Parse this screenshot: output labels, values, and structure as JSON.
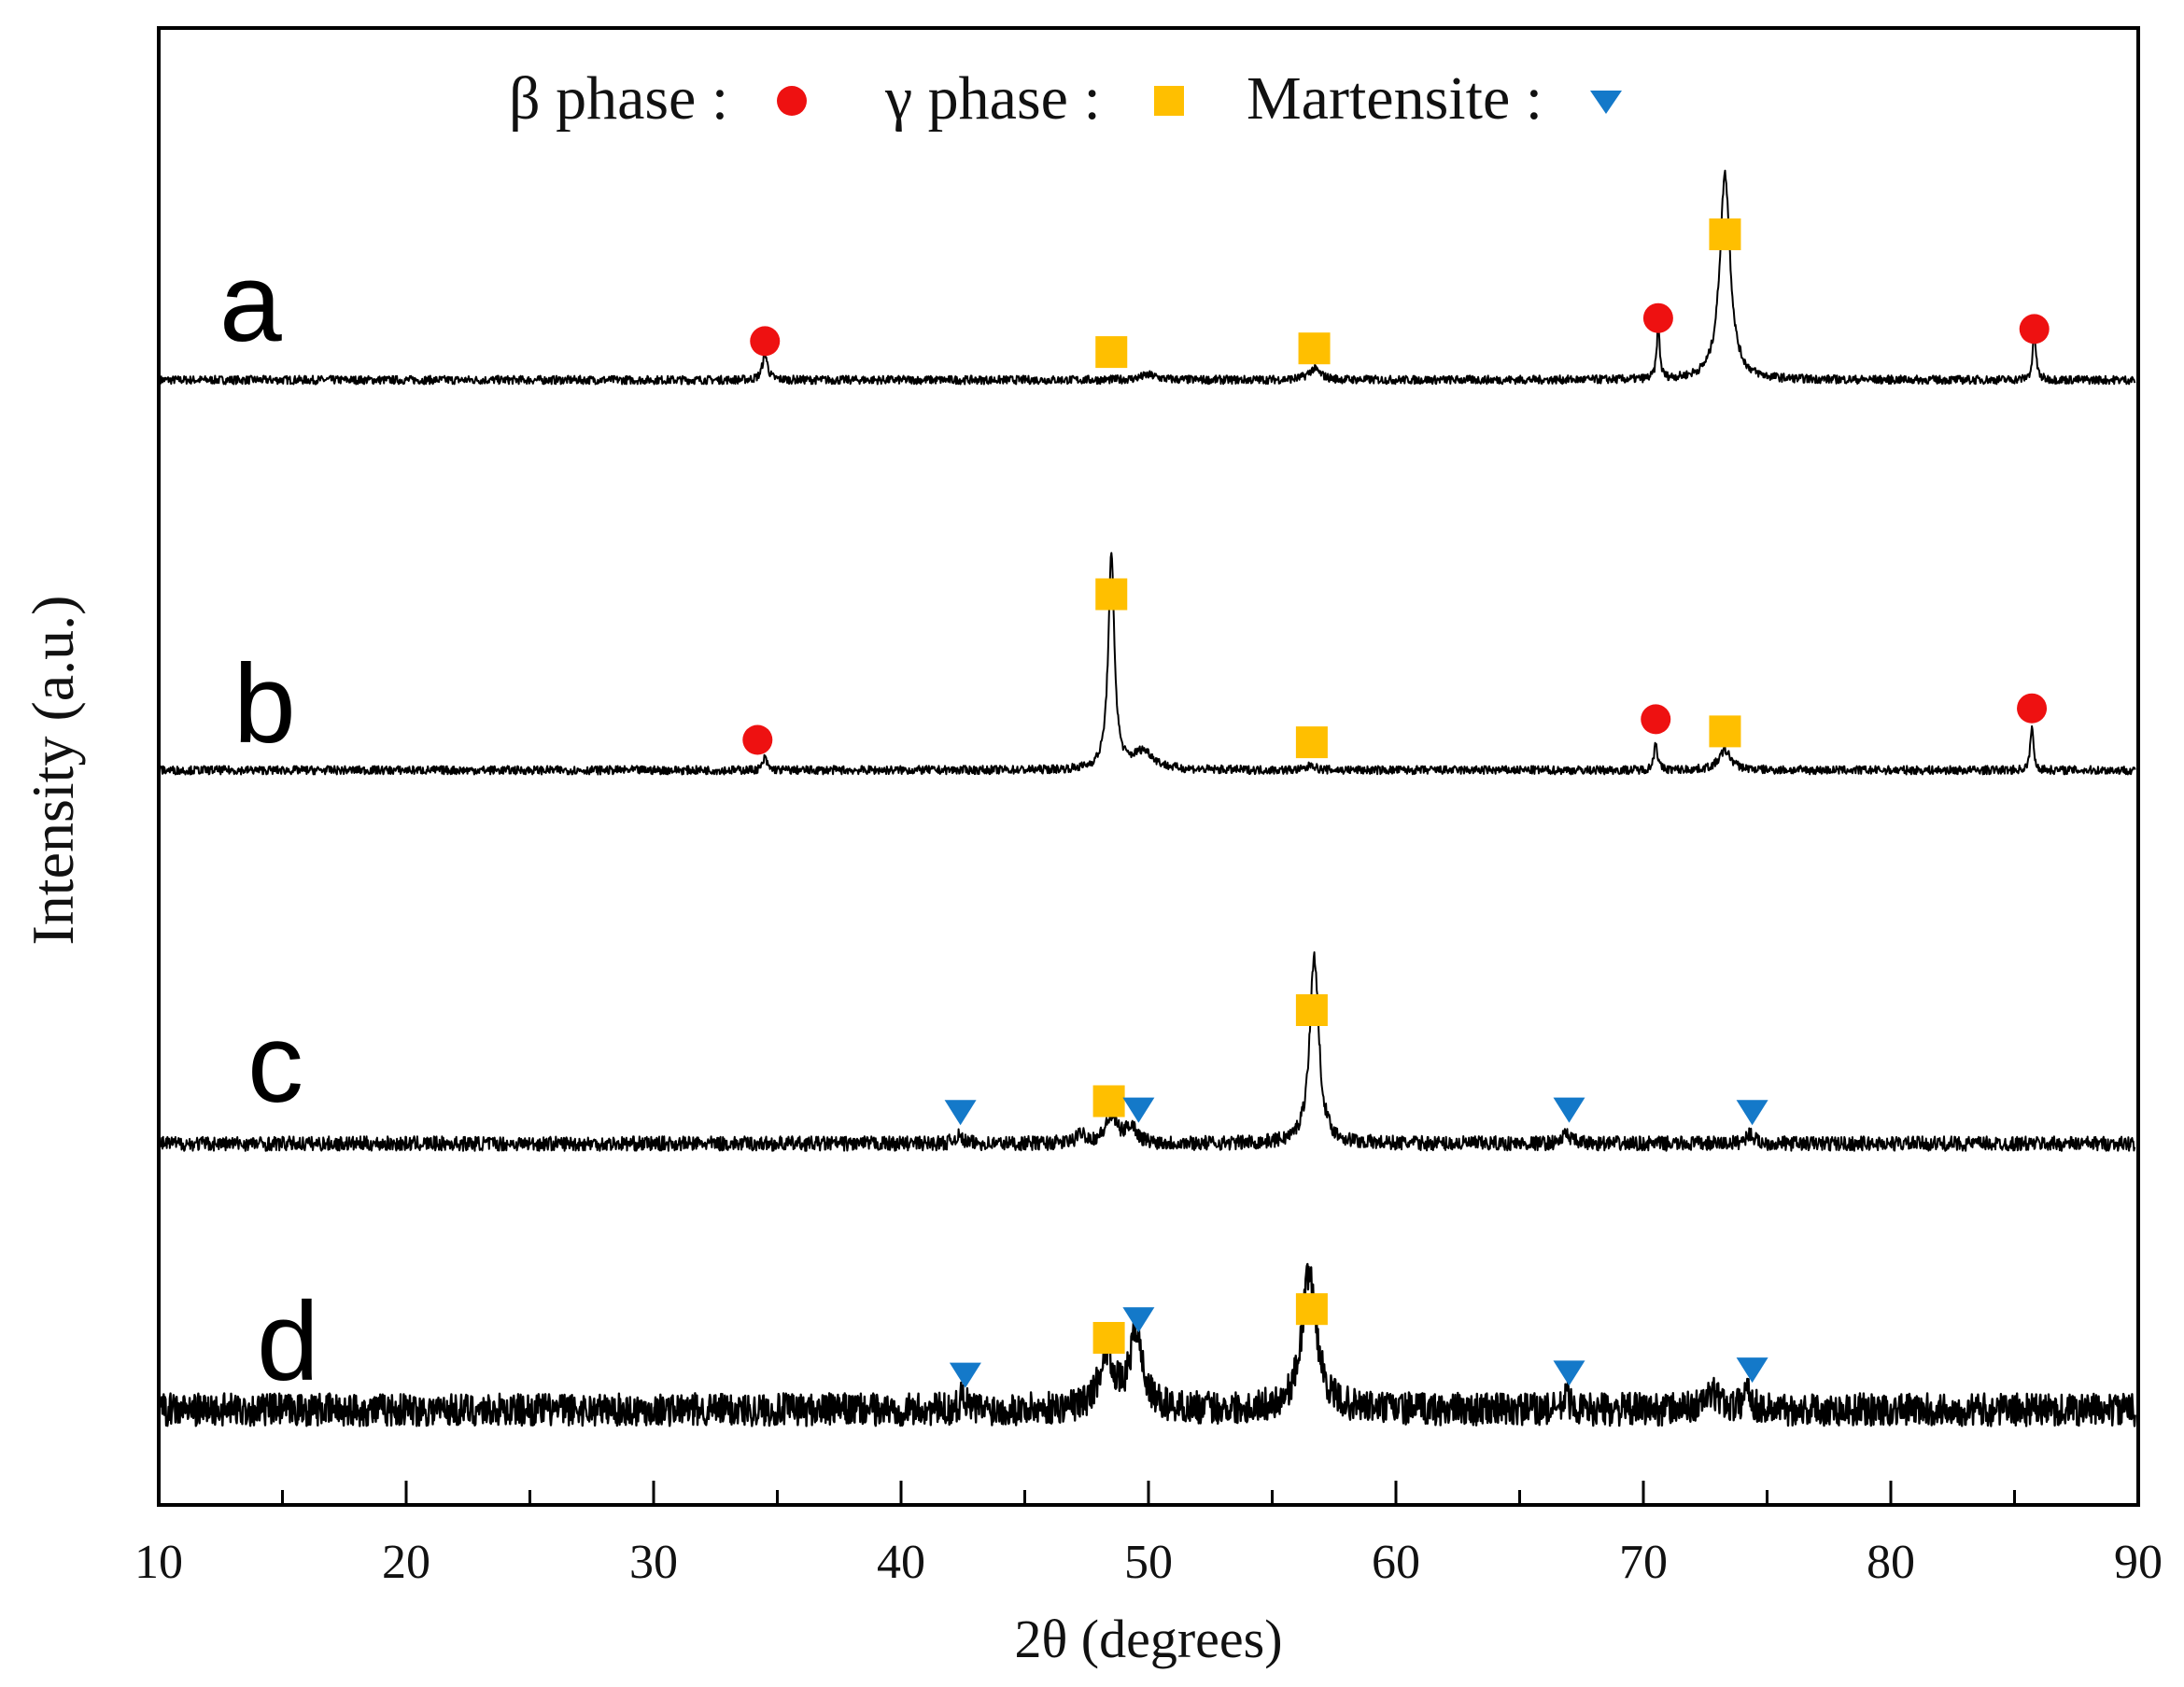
{
  "chart_data": {
    "type": "line",
    "title": "",
    "xlabel": "2θ  (degrees)",
    "ylabel": "Intensity (a.u.)",
    "xlim": [
      10,
      90
    ],
    "x_ticks": [
      10,
      20,
      30,
      40,
      50,
      60,
      70,
      80,
      90
    ],
    "x_tick_labels": [
      "10",
      "20",
      "30",
      "40",
      "50",
      "60",
      "70",
      "80",
      "90"
    ],
    "y_ticks": [],
    "grid": false,
    "legend_position": "top-center",
    "legend": [
      {
        "label": "β phase :",
        "marker": "circle",
        "color": "#EE1111"
      },
      {
        "label": "γ phase :",
        "marker": "square",
        "color": "#FFBF00"
      },
      {
        "label": "Martensite :",
        "marker": "triangle-down",
        "color": "#1479C9"
      }
    ],
    "series": [
      {
        "name": "a",
        "baseline": 0,
        "noise": 0.35,
        "peaks": [
          {
            "x": 34.5,
            "height": 2.2,
            "width": 0.12
          },
          {
            "x": 50.0,
            "height": 0.4,
            "width": 0.4
          },
          {
            "x": 56.7,
            "height": 0.9,
            "width": 0.3
          },
          {
            "x": 70.6,
            "height": 4.5,
            "width": 0.07
          },
          {
            "x": 73.3,
            "height": 17.0,
            "width": 0.25
          },
          {
            "x": 85.8,
            "height": 3.8,
            "width": 0.08
          }
        ],
        "markers": [
          {
            "phase": "beta",
            "x": 34.5,
            "y": 3.2
          },
          {
            "phase": "gamma",
            "x": 48.5,
            "y": 2.3
          },
          {
            "phase": "gamma",
            "x": 56.7,
            "y": 2.6
          },
          {
            "phase": "beta",
            "x": 70.6,
            "y": 5.1
          },
          {
            "phase": "gamma",
            "x": 73.3,
            "y": 12.0
          },
          {
            "phase": "beta",
            "x": 85.8,
            "y": 4.2
          }
        ]
      },
      {
        "name": "b",
        "baseline": 0,
        "noise": 0.35,
        "peaks": [
          {
            "x": 34.5,
            "height": 1.0,
            "width": 0.1
          },
          {
            "x": 48.5,
            "height": 17.5,
            "width": 0.15
          },
          {
            "x": 49.8,
            "height": 1.5,
            "width": 0.5
          },
          {
            "x": 56.6,
            "height": 0.5,
            "width": 0.15
          },
          {
            "x": 70.5,
            "height": 2.4,
            "width": 0.08
          },
          {
            "x": 73.3,
            "height": 1.6,
            "width": 0.3
          },
          {
            "x": 85.7,
            "height": 3.8,
            "width": 0.07
          }
        ],
        "markers": [
          {
            "phase": "beta",
            "x": 34.2,
            "y": 2.5
          },
          {
            "phase": "gamma",
            "x": 48.5,
            "y": 14.5
          },
          {
            "phase": "gamma",
            "x": 56.6,
            "y": 2.3
          },
          {
            "phase": "beta",
            "x": 70.5,
            "y": 4.2
          },
          {
            "phase": "gamma",
            "x": 73.3,
            "y": 3.2
          },
          {
            "phase": "beta",
            "x": 85.7,
            "y": 5.1
          }
        ]
      },
      {
        "name": "c",
        "baseline": 0,
        "noise": 0.6,
        "peaks": [
          {
            "x": 42.3,
            "height": 0.6,
            "width": 0.2
          },
          {
            "x": 47.3,
            "height": 0.8,
            "width": 0.2
          },
          {
            "x": 48.5,
            "height": 2.1,
            "width": 0.3
          },
          {
            "x": 49.3,
            "height": 1.4,
            "width": 0.25
          },
          {
            "x": 56.7,
            "height": 15.5,
            "width": 0.22
          },
          {
            "x": 66.9,
            "height": 0.8,
            "width": 0.2
          },
          {
            "x": 74.3,
            "height": 0.8,
            "width": 0.2
          }
        ],
        "markers": [
          {
            "phase": "martensite",
            "x": 42.4,
            "y": 2.6
          },
          {
            "phase": "gamma",
            "x": 48.4,
            "y": 3.5
          },
          {
            "phase": "martensite",
            "x": 49.6,
            "y": 2.8
          },
          {
            "phase": "gamma",
            "x": 56.6,
            "y": 11.0
          },
          {
            "phase": "martensite",
            "x": 67.0,
            "y": 2.8
          },
          {
            "phase": "martensite",
            "x": 74.4,
            "y": 2.6
          }
        ]
      },
      {
        "name": "d",
        "baseline": 0,
        "noise": 1.6,
        "peaks": [
          {
            "x": 42.5,
            "height": 2.0,
            "width": 0.1
          },
          {
            "x": 48.3,
            "height": 5.5,
            "width": 0.35
          },
          {
            "x": 49.5,
            "height": 7.5,
            "width": 0.3
          },
          {
            "x": 56.5,
            "height": 13.5,
            "width": 0.35
          },
          {
            "x": 66.9,
            "height": 1.8,
            "width": 0.1
          },
          {
            "x": 72.8,
            "height": 1.5,
            "width": 0.4
          },
          {
            "x": 74.2,
            "height": 2.3,
            "width": 0.15
          }
        ],
        "markers": [
          {
            "phase": "martensite",
            "x": 42.6,
            "y": 3.4
          },
          {
            "phase": "gamma",
            "x": 48.4,
            "y": 7.0
          },
          {
            "phase": "martensite",
            "x": 49.6,
            "y": 8.8
          },
          {
            "phase": "gamma",
            "x": 56.6,
            "y": 9.8
          },
          {
            "phase": "martensite",
            "x": 67.0,
            "y": 3.6
          },
          {
            "phase": "martensite",
            "x": 74.4,
            "y": 3.9
          }
        ]
      }
    ]
  }
}
